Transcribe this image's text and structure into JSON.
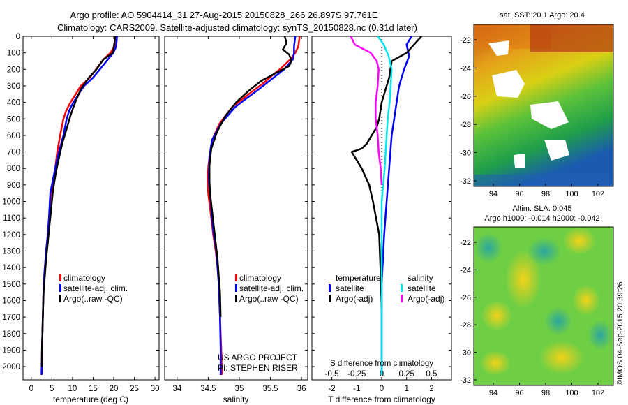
{
  "header": {
    "line1": "Argo profile: AO 5904414_31 27-Aug-2015 20150828_266 26.897S 97.761E",
    "line2": "Climatology: CARS2009. Satellite-adjusted climatology: synTS_20150828.nc (0.31d later)"
  },
  "colors": {
    "climatology": "#ff0000",
    "satellite": "#0000ff",
    "argo": "#000000",
    "cyan": "#00e5ee",
    "magenta": "#ff00ff"
  },
  "depth_axis": {
    "ticks": [
      0,
      100,
      200,
      300,
      400,
      500,
      600,
      700,
      800,
      900,
      1000,
      1100,
      1200,
      1300,
      1400,
      1500,
      1600,
      1700,
      1800,
      1900,
      2000
    ],
    "range": [
      0,
      2080
    ]
  },
  "panels": {
    "temperature": {
      "xlabel": "temperature (deg C)",
      "xticks": [
        "0",
        "5",
        "10",
        "15",
        "20",
        "25",
        "30"
      ]
    },
    "salinity": {
      "xlabel": "salinity",
      "xticks": [
        "34",
        "34.5",
        "35",
        "35.5",
        "36"
      ]
    },
    "difference": {
      "xlabel": "T difference from climatology",
      "top_label": "S difference from climatology",
      "xticks": [
        "-2",
        "-1",
        "0",
        "1",
        "2"
      ],
      "top_ticks": [
        "-0.5",
        "-0.25",
        "0",
        "0.25",
        "0.5"
      ]
    }
  },
  "legend_main": {
    "items": [
      "climatology",
      "satellite-adj. clim.",
      "Argo(..raw -QC)"
    ]
  },
  "legend_diff": {
    "temperature_title": "temperature",
    "salinity_title": "salinity",
    "temperature_items": [
      "satellite",
      "Argo(-adj)"
    ],
    "salinity_items": [
      "satellite",
      "Argo(-adj)"
    ]
  },
  "credit": {
    "line1": "US ARGO PROJECT",
    "line2": "PI: STEPHEN RISER"
  },
  "maps": {
    "sst_title": "sat. SST: 20.1  Argo: 20.4",
    "sla_title1": "Altim. SLA: 0.045",
    "sla_title2": "Argo h1000: -0.014 h2000: -0.042",
    "xticks": [
      "94",
      "96",
      "98",
      "100",
      "102"
    ],
    "yticks": [
      "-22",
      "-24",
      "-26",
      "-28",
      "-30",
      "-32"
    ]
  },
  "footer": {
    "stamp": "©IMOS 04-Sep-2015 20:39:26"
  },
  "chart_data": [
    {
      "type": "line",
      "title": "",
      "xlabel": "temperature (deg C)",
      "ylabel": "",
      "xlim": [
        -2,
        31
      ],
      "ylim": [
        2080,
        0
      ],
      "series": [
        {
          "name": "climatology",
          "x": [
            20.3,
            20.2,
            19.2,
            17.5,
            14.2,
            12.0,
            10.8,
            9.5,
            8.5,
            7.8,
            7.0,
            6.3,
            5.8,
            5.5,
            5.3,
            5.0,
            4.6,
            4.3,
            4.0,
            3.6,
            3.3,
            3.0,
            2.8,
            2.6,
            2.5
          ],
          "depth": [
            0,
            60,
            100,
            140,
            250,
            300,
            350,
            400,
            450,
            500,
            600,
            700,
            800,
            850,
            900,
            950,
            1000,
            1100,
            1200,
            1300,
            1400,
            1500,
            1700,
            1900,
            2050
          ]
        },
        {
          "name": "satellite-adj. clim.",
          "x": [
            20.8,
            20.6,
            19.9,
            18.6,
            15.0,
            12.8,
            11.5,
            10.2,
            9.2,
            8.6,
            7.8,
            6.7,
            5.8,
            5.4,
            5.0,
            4.6,
            4.3,
            4.0,
            3.6,
            3.3,
            3.0,
            2.8,
            2.6,
            2.5
          ],
          "depth": [
            0,
            60,
            100,
            140,
            250,
            300,
            350,
            400,
            450,
            500,
            600,
            700,
            800,
            850,
            900,
            950,
            1100,
            1200,
            1300,
            1400,
            1500,
            1700,
            1900,
            2050
          ]
        },
        {
          "name": "Argo(..raw -QC)",
          "x": [
            20.4,
            20.1,
            19.8,
            17.5,
            15.8,
            14.0,
            12.0,
            11.0,
            10.2,
            9.5,
            8.7,
            7.5,
            6.6,
            6.0,
            5.6,
            5.2,
            4.8,
            4.4,
            4.0,
            3.6,
            3.3,
            3.0,
            2.8,
            2.6,
            2.6
          ],
          "depth": [
            0,
            50,
            100,
            140,
            200,
            250,
            320,
            380,
            430,
            480,
            550,
            650,
            750,
            820,
            880,
            950,
            1050,
            1150,
            1250,
            1350,
            1450,
            1550,
            1700,
            1900,
            2000
          ]
        }
      ]
    },
    {
      "type": "line",
      "title": "",
      "xlabel": "salinity",
      "ylabel": "",
      "xlim": [
        33.8,
        36.1
      ],
      "ylim": [
        2080,
        0
      ],
      "series": [
        {
          "name": "climatology",
          "x": [
            35.97,
            35.95,
            35.9,
            35.82,
            35.65,
            35.55,
            35.4,
            35.22,
            35.05,
            34.88,
            34.68,
            34.56,
            34.52,
            34.49,
            34.49,
            34.5,
            34.55,
            34.58,
            34.62,
            34.65,
            34.67,
            34.69,
            34.71,
            34.72
          ],
          "depth": [
            0,
            60,
            100,
            140,
            200,
            230,
            280,
            330,
            380,
            430,
            530,
            630,
            730,
            830,
            880,
            950,
            1100,
            1200,
            1300,
            1400,
            1500,
            1700,
            1900,
            2050
          ]
        },
        {
          "name": "satellite-adj. clim.",
          "x": [
            35.9,
            35.88,
            35.88,
            35.86,
            35.72,
            35.62,
            35.45,
            35.28,
            35.1,
            34.93,
            34.7,
            34.56,
            34.52,
            34.51,
            34.51,
            34.53,
            34.56,
            34.59,
            34.63,
            34.65,
            34.67,
            34.69,
            34.7,
            34.7
          ],
          "depth": [
            0,
            60,
            100,
            140,
            200,
            230,
            280,
            330,
            380,
            430,
            530,
            630,
            730,
            830,
            880,
            950,
            1100,
            1200,
            1300,
            1400,
            1500,
            1700,
            1900,
            2050
          ]
        },
        {
          "name": "Argo(..raw -QC)",
          "x": [
            35.73,
            35.76,
            35.7,
            35.8,
            35.84,
            35.8,
            35.6,
            35.35,
            35.15,
            34.95,
            34.78,
            34.64,
            34.55,
            34.52,
            34.52,
            34.53,
            34.56,
            34.59,
            34.62,
            34.65,
            34.67,
            34.69,
            34.7
          ],
          "depth": [
            0,
            40,
            80,
            110,
            150,
            180,
            220,
            270,
            330,
            400,
            480,
            580,
            680,
            780,
            880,
            950,
            1050,
            1150,
            1250,
            1350,
            1450,
            1550,
            1700
          ]
        }
      ]
    },
    {
      "type": "line",
      "title": "",
      "xlabel": "T difference from climatology",
      "ylabel": "",
      "xlim": [
        -2.8,
        2.8
      ],
      "ylim": [
        2080,
        0
      ],
      "series": [
        {
          "name": "temperature satellite",
          "axis": "T",
          "x": [
            1.2,
            1.0,
            1.1,
            0.9,
            0.7,
            0.6,
            0.5,
            0.4,
            0.3,
            0.2,
            0.1,
            0.0,
            0.0
          ],
          "depth": [
            0,
            50,
            120,
            200,
            300,
            400,
            500,
            600,
            800,
            1000,
            1200,
            1500,
            2050
          ]
        },
        {
          "name": "temperature Argo(-adj)",
          "axis": "T",
          "x": [
            1.6,
            1.3,
            1.0,
            0.4,
            0.3,
            0.0,
            -0.1,
            -0.2,
            -0.4,
            -0.6,
            -0.8,
            -1.2,
            -0.8,
            -0.5,
            -0.35,
            -0.1,
            -0.05,
            0.0
          ],
          "depth": [
            0,
            50,
            100,
            150,
            250,
            400,
            500,
            550,
            600,
            650,
            680,
            700,
            800,
            900,
            1000,
            1200,
            1400,
            1650
          ]
        },
        {
          "name": "salinity satellite",
          "axis": "S",
          "x": [
            -0.04,
            0.02,
            0.07,
            0.1,
            0.09,
            0.08,
            0.06,
            0.05,
            0.03,
            0.0,
            0.0
          ],
          "depth": [
            0,
            50,
            120,
            200,
            300,
            400,
            500,
            600,
            800,
            1000,
            2050
          ]
        },
        {
          "name": "salinity Argo(-adj)",
          "axis": "S",
          "x": [
            -0.31,
            -0.27,
            -0.11,
            -0.05,
            -0.03,
            -0.04,
            -0.06,
            -0.06,
            -0.04,
            -0.03,
            -0.01,
            0.0
          ],
          "depth": [
            0,
            50,
            100,
            150,
            200,
            300,
            400,
            500,
            600,
            700,
            800,
            900
          ]
        }
      ]
    }
  ]
}
